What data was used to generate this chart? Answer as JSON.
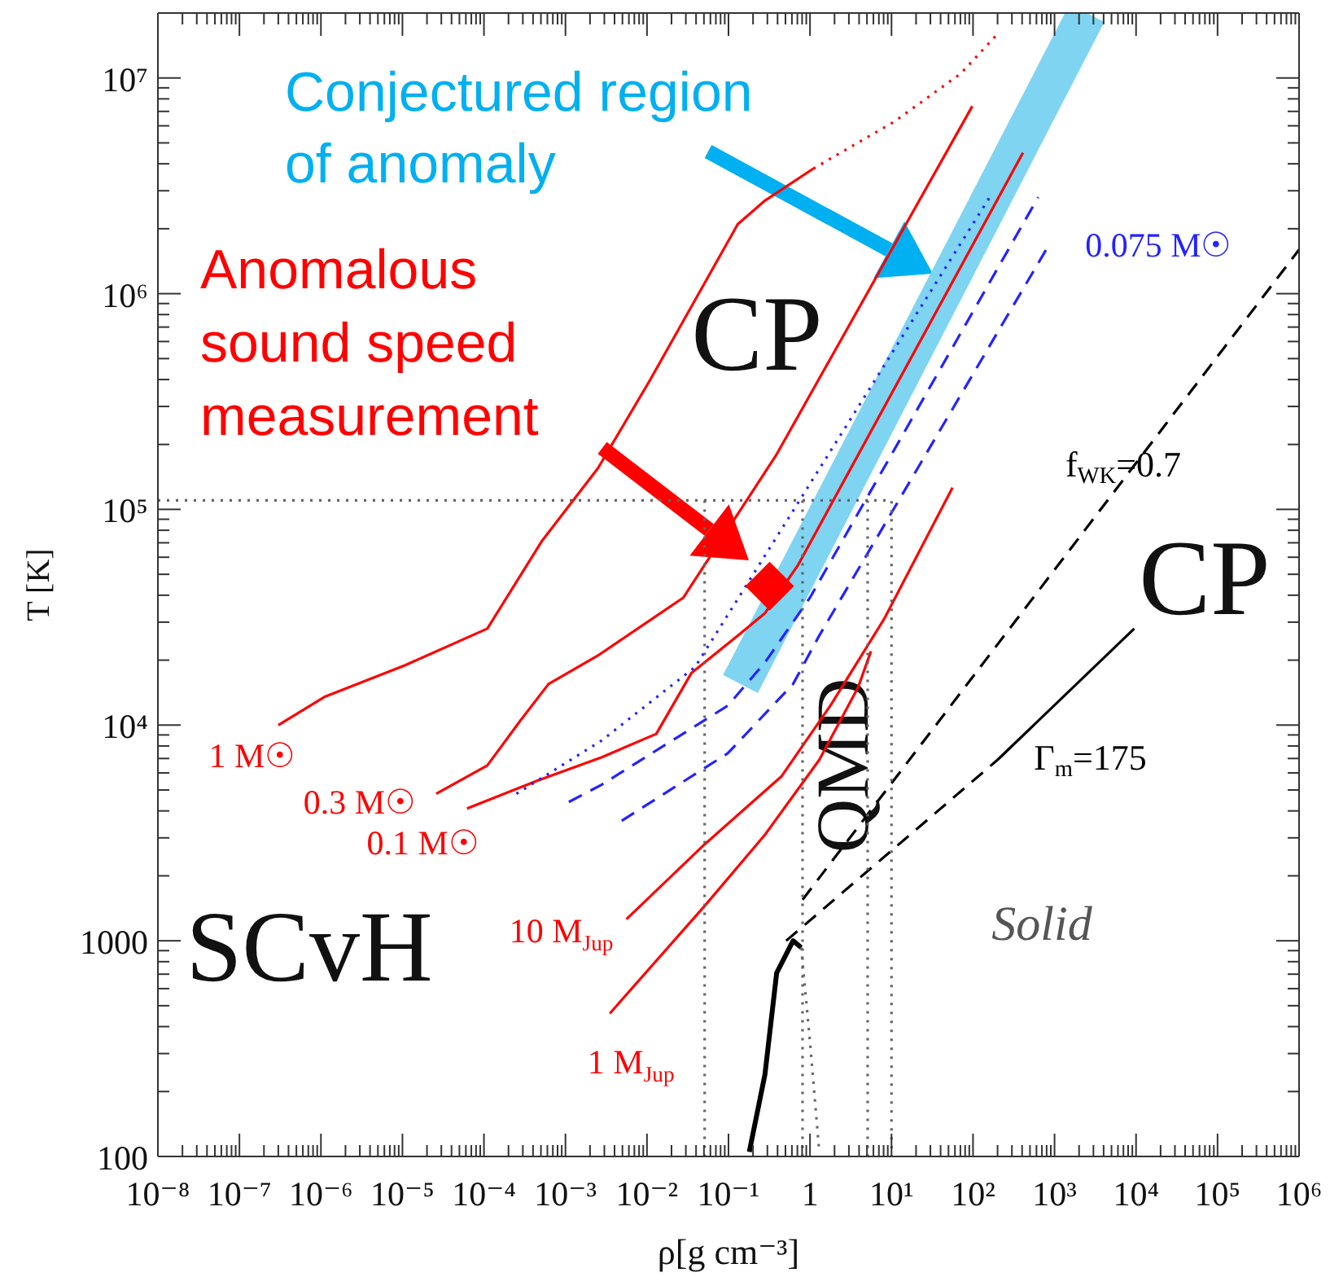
{
  "chart_data": {
    "type": "line",
    "xlabel": "ρ[g cm⁻³]",
    "ylabel": "T [K]",
    "log": "xy",
    "grid": false,
    "legend": false,
    "marker": "none",
    "xlim": [
      1e-08,
      1000000.0
    ],
    "ylim": [
      100,
      20000000.0
    ],
    "xticks": [
      {
        "value": 1e-08,
        "label": "10⁻⁸"
      },
      {
        "value": 2e-08,
        "label": null
      },
      {
        "value": 3e-08,
        "label": null
      },
      {
        "value": 4e-08,
        "label": null
      },
      {
        "value": 5e-08,
        "label": null
      },
      {
        "value": 6e-08,
        "label": null
      },
      {
        "value": 7e-08,
        "label": null
      },
      {
        "value": 8e-08,
        "label": null
      },
      {
        "value": 9e-08,
        "label": null
      },
      {
        "value": 1e-07,
        "label": "10⁻⁷"
      },
      {
        "value": 2e-07,
        "label": null
      },
      {
        "value": 3e-07,
        "label": null
      },
      {
        "value": 4e-07,
        "label": null
      },
      {
        "value": 5e-07,
        "label": null
      },
      {
        "value": 6e-07,
        "label": null
      },
      {
        "value": 7e-07,
        "label": null
      },
      {
        "value": 8e-07,
        "label": null
      },
      {
        "value": 9e-07,
        "label": null
      },
      {
        "value": 1e-06,
        "label": "10⁻⁶"
      },
      {
        "value": 2e-06,
        "label": null
      },
      {
        "value": 3e-06,
        "label": null
      },
      {
        "value": 4e-06,
        "label": null
      },
      {
        "value": 5e-06,
        "label": null
      },
      {
        "value": 6e-06,
        "label": null
      },
      {
        "value": 7e-06,
        "label": null
      },
      {
        "value": 8e-06,
        "label": null
      },
      {
        "value": 9e-06,
        "label": null
      },
      {
        "value": 1e-05,
        "label": "10⁻⁵"
      },
      {
        "value": 2e-05,
        "label": null
      },
      {
        "value": 3e-05,
        "label": null
      },
      {
        "value": 4e-05,
        "label": null
      },
      {
        "value": 5e-05,
        "label": null
      },
      {
        "value": 6e-05,
        "label": null
      },
      {
        "value": 7e-05,
        "label": null
      },
      {
        "value": 8e-05,
        "label": null
      },
      {
        "value": 9e-05,
        "label": null
      },
      {
        "value": 0.0001,
        "label": "10⁻⁴"
      },
      {
        "value": 0.0002,
        "label": null
      },
      {
        "value": 0.0003,
        "label": null
      },
      {
        "value": 0.0004,
        "label": null
      },
      {
        "value": 0.0005,
        "label": null
      },
      {
        "value": 0.0006,
        "label": null
      },
      {
        "value": 0.0007,
        "label": null
      },
      {
        "value": 0.0008,
        "label": null
      },
      {
        "value": 0.0009,
        "label": null
      },
      {
        "value": 0.001,
        "label": "10⁻³"
      },
      {
        "value": 0.002,
        "label": null
      },
      {
        "value": 0.003,
        "label": null
      },
      {
        "value": 0.004,
        "label": null
      },
      {
        "value": 0.005,
        "label": null
      },
      {
        "value": 0.006,
        "label": null
      },
      {
        "value": 0.007,
        "label": null
      },
      {
        "value": 0.008,
        "label": null
      },
      {
        "value": 0.009,
        "label": null
      },
      {
        "value": 0.01,
        "label": "10⁻²"
      },
      {
        "value": 0.02,
        "label": null
      },
      {
        "value": 0.03,
        "label": null
      },
      {
        "value": 0.04,
        "label": null
      },
      {
        "value": 0.05,
        "label": null
      },
      {
        "value": 0.06,
        "label": null
      },
      {
        "value": 0.07,
        "label": null
      },
      {
        "value": 0.08,
        "label": null
      },
      {
        "value": 0.09,
        "label": null
      },
      {
        "value": 0.1,
        "label": "10⁻¹"
      },
      {
        "value": 0.2,
        "label": null
      },
      {
        "value": 0.3,
        "label": null
      },
      {
        "value": 0.4,
        "label": null
      },
      {
        "value": 0.5,
        "label": null
      },
      {
        "value": 0.6,
        "label": null
      },
      {
        "value": 0.7,
        "label": null
      },
      {
        "value": 0.8,
        "label": null
      },
      {
        "value": 0.9,
        "label": null
      },
      1,
      {
        "value": 2,
        "label": null
      },
      {
        "value": 3,
        "label": null
      },
      {
        "value": 4,
        "label": null
      },
      {
        "value": 5,
        "label": null
      },
      {
        "value": 6,
        "label": null
      },
      {
        "value": 7,
        "label": null
      },
      {
        "value": 8,
        "label": null
      },
      {
        "value": 9,
        "label": null
      },
      {
        "value": 10,
        "label": "10¹"
      },
      {
        "value": 20,
        "label": null
      },
      {
        "value": 30,
        "label": null
      },
      {
        "value": 40,
        "label": null
      },
      {
        "value": 50,
        "label": null
      },
      {
        "value": 60,
        "label": null
      },
      {
        "value": 70,
        "label": null
      },
      {
        "value": 80,
        "label": null
      },
      {
        "value": 90,
        "label": null
      },
      {
        "value": 100,
        "label": "10²"
      },
      {
        "value": 200,
        "label": null
      },
      {
        "value": 300,
        "label": null
      },
      {
        "value": 400,
        "label": null
      },
      {
        "value": 500,
        "label": null
      },
      {
        "value": 600,
        "label": null
      },
      {
        "value": 700,
        "label": null
      },
      {
        "value": 800,
        "label": null
      },
      {
        "value": 900,
        "label": null
      },
      {
        "value": 1000,
        "label": "10³"
      },
      {
        "value": 2000,
        "label": null
      },
      {
        "value": 3000,
        "label": null
      },
      {
        "value": 4000,
        "label": null
      },
      {
        "value": 5000,
        "label": null
      },
      {
        "value": 6000,
        "label": null
      },
      {
        "value": 7000,
        "label": null
      },
      {
        "value": 8000,
        "label": null
      },
      {
        "value": 9000,
        "label": null
      },
      {
        "value": 10000,
        "label": "10⁴"
      },
      {
        "value": 20000,
        "label": null
      },
      {
        "value": 30000,
        "label": null
      },
      {
        "value": 40000,
        "label": null
      },
      {
        "value": 50000,
        "label": null
      },
      {
        "value": 60000,
        "label": null
      },
      {
        "value": 70000,
        "label": null
      },
      {
        "value": 80000,
        "label": null
      },
      {
        "value": 90000,
        "label": null
      },
      {
        "value": 100000,
        "label": "10⁵"
      },
      {
        "value": 200000,
        "label": null
      },
      {
        "value": 300000,
        "label": null
      },
      {
        "value": 400000,
        "label": null
      },
      {
        "value": 500000,
        "label": null
      },
      {
        "value": 600000,
        "label": null
      },
      {
        "value": 700000,
        "label": null
      },
      {
        "value": 800000,
        "label": null
      },
      {
        "value": 900000,
        "label": null
      },
      {
        "value": 1000000,
        "label": "10⁶"
      }
    ],
    "yticks": [
      100,
      {
        "value": 200,
        "label": null
      },
      {
        "value": 300,
        "label": null
      },
      {
        "value": 400,
        "label": null
      },
      {
        "value": 500,
        "label": null
      },
      {
        "value": 600,
        "label": null
      },
      {
        "value": 700,
        "label": null
      },
      {
        "value": 800,
        "label": null
      },
      {
        "value": 900,
        "label": null
      },
      1000,
      {
        "value": 2000,
        "label": null
      },
      {
        "value": 3000,
        "label": null
      },
      {
        "value": 4000,
        "label": null
      },
      {
        "value": 5000,
        "label": null
      },
      {
        "value": 6000,
        "label": null
      },
      {
        "value": 7000,
        "label": null
      },
      {
        "value": 8000,
        "label": null
      },
      {
        "value": 9000,
        "label": null
      },
      {
        "value": 10000,
        "label": "10⁴"
      },
      {
        "value": 20000,
        "label": null
      },
      {
        "value": 30000,
        "label": null
      },
      {
        "value": 40000,
        "label": null
      },
      {
        "value": 50000,
        "label": null
      },
      {
        "value": 60000,
        "label": null
      },
      {
        "value": 70000,
        "label": null
      },
      {
        "value": 80000,
        "label": null
      },
      {
        "value": 90000,
        "label": null
      },
      {
        "value": 100000,
        "label": "10⁵"
      },
      {
        "value": 200000,
        "label": null
      },
      {
        "value": 300000,
        "label": null
      },
      {
        "value": 400000,
        "label": null
      },
      {
        "value": 500000,
        "label": null
      },
      {
        "value": 600000,
        "label": null
      },
      {
        "value": 700000,
        "label": null
      },
      {
        "value": 800000,
        "label": null
      },
      {
        "value": 900000,
        "label": null
      },
      {
        "value": 1000000,
        "label": "10⁶"
      },
      {
        "value": 2000000,
        "label": null
      },
      {
        "value": 3000000,
        "label": null
      },
      {
        "value": 4000000,
        "label": null
      },
      {
        "value": 5000000,
        "label": null
      },
      {
        "value": 6000000,
        "label": null
      },
      {
        "value": 7000000,
        "label": null
      },
      {
        "value": 8000000,
        "label": null
      },
      {
        "value": 9000000,
        "label": null
      },
      {
        "value": 10000000,
        "label": "10⁷"
      }
    ],
    "series": [
      {
        "color": "#7fd4f2",
        "line_style": "solid",
        "x": [
          0.14,
          2500
        ],
        "values": [
          15500,
          20000000
        ]
      },
      {
        "name": "1 M☉",
        "color": "#ff0000",
        "line_style": "solid",
        "x": [
          3e-07,
          1.1e-06,
          1.1e-05,
          0.00011,
          0.00051,
          0.0025,
          0.011,
          0.13,
          0.28,
          1.1
        ],
        "values": [
          10000,
          13500,
          19000,
          28000,
          71000,
          155000,
          400000,
          2100000,
          2700000,
          3800000
        ]
      },
      {
        "color": "#ff0000",
        "line_style": "dotted",
        "x": [
          1.1,
          11,
          71,
          200
        ],
        "values": [
          3800000,
          6300000,
          10500000,
          16000000
        ]
      },
      {
        "name": "0.3 M☉",
        "color": "#ff0000",
        "line_style": "solid",
        "x": [
          2.6e-05,
          0.00011,
          0.00028,
          0.00062,
          0.0025,
          0.028,
          0.39,
          98
        ],
        "values": [
          4800,
          6500,
          10500,
          15500,
          21000,
          39000,
          180000,
          7400000
        ]
      },
      {
        "name": "0.1 M☉",
        "color": "#ff0000",
        "line_style": "solid",
        "x": [
          6.2e-05,
          0.00044,
          0.0028,
          0.013,
          0.035,
          0.13,
          0.28,
          0.71,
          410
        ],
        "values": [
          4100,
          5500,
          7100,
          9100,
          17400,
          26000,
          33000,
          55000,
          4500000
        ]
      },
      {
        "name": "10 M$_{Jup}$",
        "color": "#ff0000",
        "line_style": "solid",
        "x": [
          0.0056,
          0.051,
          0.45,
          1.8,
          8.1,
          56
        ],
        "values": [
          1260,
          2800,
          5800,
          12400,
          31000,
          126000
        ]
      },
      {
        "name": "1 M$_{Jup}$",
        "color": "#ff0000",
        "line_style": "solid",
        "x": [
          0.0035,
          0.051,
          0.28,
          1.3,
          3.9,
          5.6
        ],
        "values": [
          460,
          1450,
          3100,
          6900,
          15000,
          22000
        ]
      },
      {
        "color": "#2323ff",
        "line_style": "dotted",
        "x": [
          0.00025,
          0.0028,
          0.039,
          160
        ],
        "values": [
          4800,
          8500,
          18600,
          2800000
        ]
      },
      {
        "color": "#2323ff",
        "line_style": "dashed",
        "x": [
          0.0011,
          0.0028,
          0.098,
          0.28,
          1.0,
          630
        ],
        "values": [
          4400,
          5300,
          12300,
          19500,
          39000,
          2800000
        ]
      },
      {
        "name": "0.075 M☉",
        "color": "#2323ff",
        "line_style": "dashed",
        "x": [
          0.0049,
          0.098,
          0.62,
          1.3,
          790
        ],
        "values": [
          3600,
          7400,
          15500,
          26000,
          1600000
        ]
      },
      {
        "name": "f$_{WK}$=0.7",
        "color": "#000000",
        "line_style": "dashed",
        "x": [
          0.81,
          1000000
        ],
        "values": [
          1550,
          1600000
        ]
      },
      {
        "color": "#000000",
        "line_style": "dashed",
        "x": [
          0.51,
          200
        ],
        "values": [
          1000,
          6900
        ]
      },
      {
        "name": "Γ$_{m}$=175",
        "color": "#000000",
        "line_style": "solid",
        "x": [
          200,
          9500
        ],
        "values": [
          6900,
          28000
        ]
      },
      {
        "color": "#000000",
        "line_style": "solid",
        "x": [
          0.18,
          0.28,
          0.39,
          0.62,
          0.78
        ],
        "values": [
          105,
          240,
          710,
          1000,
          930
        ]
      },
      {
        "color": "#666666",
        "line_style": "dotted",
        "x": [
          0.78,
          1.0,
          1.3
        ],
        "values": [
          930,
          340,
          105
        ]
      },
      {
        "color": "#666666",
        "line_style": "dotted",
        "x": [
          1e-08,
          10,
          10
        ],
        "values": [
          110000,
          110000,
          100
        ]
      },
      {
        "color": "#666666",
        "line_style": "dotted",
        "x": [
          0.051,
          0.051
        ],
        "values": [
          110000,
          100
        ]
      },
      {
        "color": "#666666",
        "line_style": "dotted",
        "x": [
          0.81,
          0.81
        ],
        "values": [
          110000,
          100
        ]
      },
      {
        "color": "#666666",
        "line_style": "dotted",
        "x": [
          5.1,
          5.1
        ],
        "values": [
          110000,
          100
        ]
      },
      {
        "type": "scatter",
        "color": "#ff0000",
        "marker": "diamond",
        "x": [
          0.32
        ],
        "values": [
          44000
        ]
      }
    ],
    "annotations": [
      "Conjectured region\nof anomaly",
      "Anomalous\nsound speed\nmeasurement",
      "CP",
      "CP",
      "SCvH",
      "QMD",
      "Solid"
    ]
  }
}
